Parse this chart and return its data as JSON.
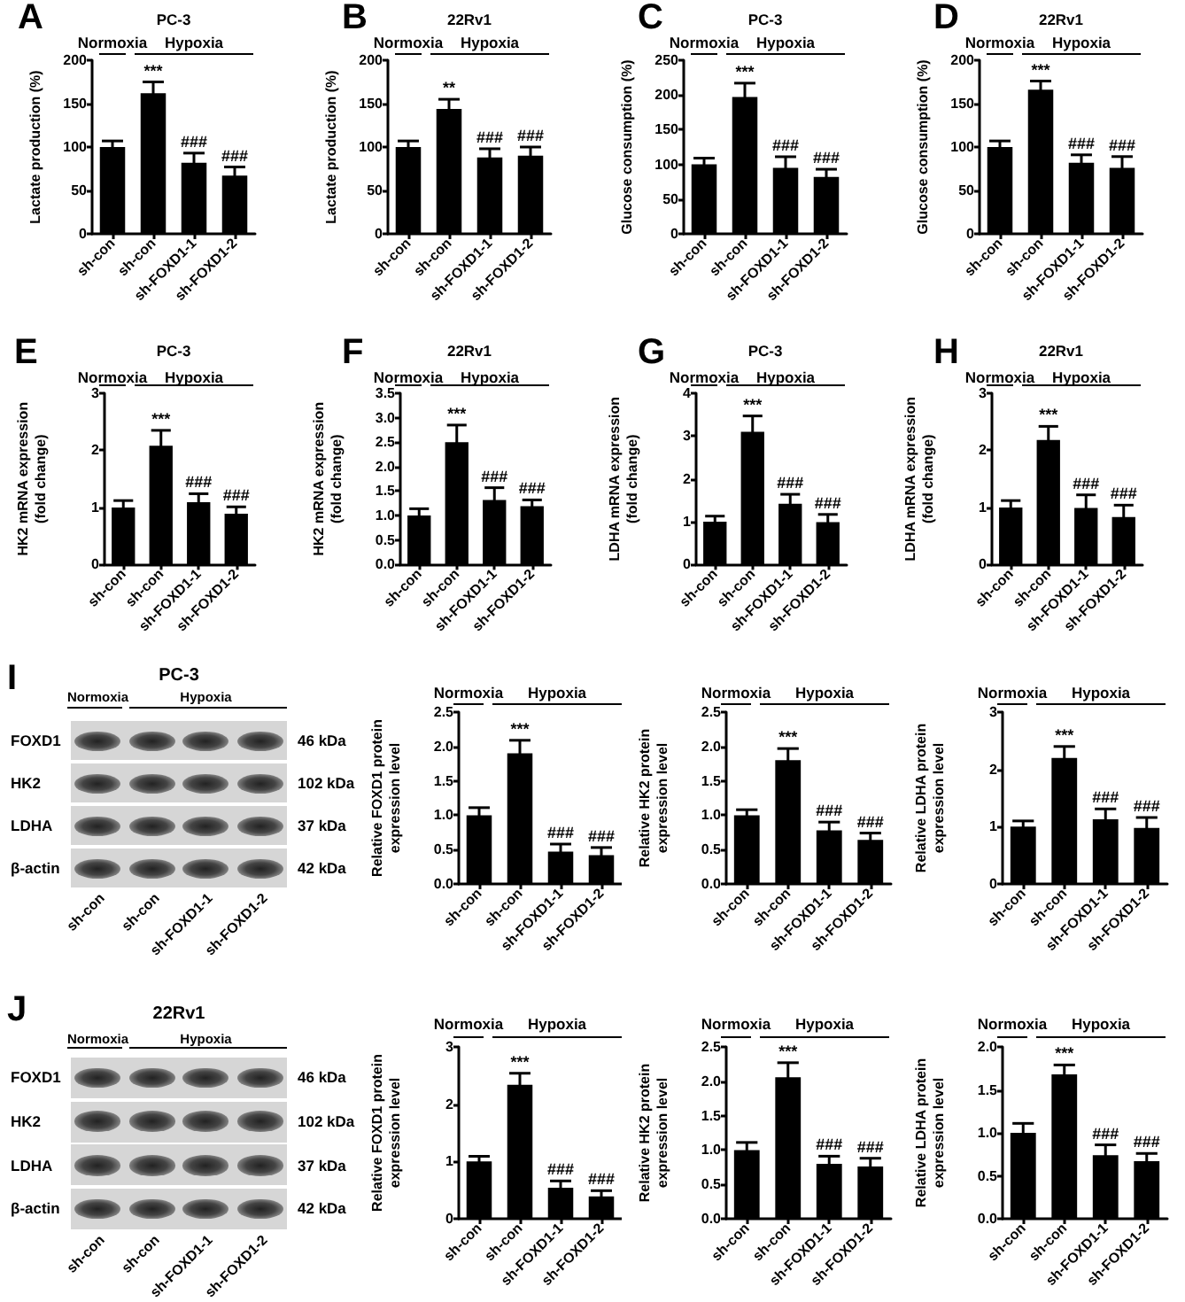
{
  "chart_data": [
    {
      "type": "bar",
      "title": "PC-3",
      "ylabel": "Lactate production (%)",
      "categories": [
        "sh-con",
        "sh-con",
        "sh-FOXD1-1",
        "sh-FOXD1-2"
      ],
      "values": [
        100,
        162,
        82,
        67
      ],
      "errors": [
        7,
        13,
        11,
        10
      ],
      "color": "#000000",
      "ylim": [
        0,
        200
      ],
      "yticks": [
        0,
        50,
        100,
        150,
        200
      ],
      "value_labels": [
        null,
        "***",
        "###",
        "###"
      ],
      "annotations": [
        "A",
        "Normoxia",
        "Hypoxia"
      ]
    },
    {
      "type": "bar",
      "title": "22Rv1",
      "ylabel": "Lactate production (%)",
      "categories": [
        "sh-con",
        "sh-con",
        "sh-FOXD1-1",
        "sh-FOXD1-2"
      ],
      "values": [
        100,
        144,
        88,
        90
      ],
      "errors": [
        7,
        11,
        10,
        10
      ],
      "color": "#000000",
      "ylim": [
        0,
        200
      ],
      "yticks": [
        0,
        50,
        100,
        150,
        200
      ],
      "value_labels": [
        null,
        "**",
        "###",
        "###"
      ],
      "annotations": [
        "B",
        "Normoxia",
        "Hypoxia"
      ]
    },
    {
      "type": "bar",
      "title": "PC-3",
      "ylabel": "Glucose consumption (%)",
      "categories": [
        "sh-con",
        "sh-con",
        "sh-FOXD1-1",
        "sh-FOXD1-2"
      ],
      "values": [
        100,
        197,
        95,
        82
      ],
      "errors": [
        9,
        20,
        16,
        11
      ],
      "color": "#000000",
      "ylim": [
        0,
        250
      ],
      "yticks": [
        0,
        50,
        100,
        150,
        200,
        250
      ],
      "value_labels": [
        null,
        "***",
        "###",
        "###"
      ],
      "annotations": [
        "C",
        "Normoxia",
        "Hypoxia"
      ]
    },
    {
      "type": "bar",
      "title": "22Rv1",
      "ylabel": "Glucose consumption (%)",
      "categories": [
        "sh-con",
        "sh-con",
        "sh-FOXD1-1",
        "sh-FOXD1-2"
      ],
      "values": [
        100,
        166,
        82,
        76
      ],
      "errors": [
        7,
        10,
        9,
        13
      ],
      "color": "#000000",
      "ylim": [
        0,
        200
      ],
      "yticks": [
        0,
        50,
        100,
        150,
        200
      ],
      "value_labels": [
        null,
        "***",
        "###",
        "###"
      ],
      "annotations": [
        "D",
        "Normoxia",
        "Hypoxia"
      ]
    },
    {
      "type": "bar",
      "title": "PC-3",
      "ylabel": "HK2 mRNA expression\n(fold change)",
      "categories": [
        "sh-con",
        "sh-con",
        "sh-FOXD1-1",
        "sh-FOXD1-2"
      ],
      "values": [
        1.0,
        2.08,
        1.09,
        0.89
      ],
      "errors": [
        0.12,
        0.27,
        0.15,
        0.12
      ],
      "color": "#000000",
      "ylim": [
        0,
        3
      ],
      "yticks": [
        0,
        1,
        2,
        3
      ],
      "value_labels": [
        null,
        "***",
        "###",
        "###"
      ],
      "annotations": [
        "E",
        "Normoxia",
        "Hypoxia"
      ]
    },
    {
      "type": "bar",
      "title": "22Rv1",
      "ylabel": "HK2 mRNA expression\n(fold change)",
      "categories": [
        "sh-con",
        "sh-con",
        "sh-FOXD1-1",
        "sh-FOXD1-2"
      ],
      "values": [
        1.0,
        2.5,
        1.32,
        1.19
      ],
      "errors": [
        0.14,
        0.35,
        0.25,
        0.13
      ],
      "color": "#000000",
      "ylim": [
        0,
        3.5
      ],
      "yticks": [
        {
          "value": 0,
          "label": "0.0"
        },
        0.5,
        {
          "value": 1,
          "label": "1.0"
        },
        1.5,
        {
          "value": 2,
          "label": "2.0"
        },
        2.5,
        {
          "value": 3,
          "label": "3.0"
        },
        3.5
      ],
      "value_labels": [
        null,
        "***",
        "###",
        "###"
      ],
      "annotations": [
        "F",
        "Normoxia",
        "Hypoxia"
      ]
    },
    {
      "type": "bar",
      "title": "PC-3",
      "ylabel": "LDHA mRNA expression\n(fold change)",
      "categories": [
        "sh-con",
        "sh-con",
        "sh-FOXD1-1",
        "sh-FOXD1-2"
      ],
      "values": [
        1.0,
        3.1,
        1.42,
        0.99
      ],
      "errors": [
        0.13,
        0.37,
        0.22,
        0.18
      ],
      "color": "#000000",
      "ylim": [
        0,
        4
      ],
      "yticks": [
        0,
        1,
        2,
        3,
        4
      ],
      "value_labels": [
        null,
        "***",
        "###",
        "###"
      ],
      "annotations": [
        "G",
        "Normoxia",
        "Hypoxia"
      ]
    },
    {
      "type": "bar",
      "title": "22Rv1",
      "ylabel": "LDHA mRNA expression\n(fold change)",
      "categories": [
        "sh-con",
        "sh-con",
        "sh-FOXD1-1",
        "sh-FOXD1-2"
      ],
      "values": [
        1.0,
        2.18,
        0.99,
        0.83
      ],
      "errors": [
        0.12,
        0.24,
        0.23,
        0.21
      ],
      "color": "#000000",
      "ylim": [
        0,
        3
      ],
      "yticks": [
        0,
        1,
        2,
        3
      ],
      "value_labels": [
        null,
        "***",
        "###",
        "###"
      ],
      "annotations": [
        "H",
        "Normoxia",
        "Hypoxia"
      ]
    },
    {
      "type": "other",
      "title": "PC-3",
      "categories": [
        "sh-con",
        "sh-con",
        "sh-FOXD1-1",
        "sh-FOXD1-2"
      ],
      "y_categories": [
        "FOXD1",
        "HK2",
        "LDHA",
        "β-actin"
      ],
      "y2_categories": [
        "46 kDa",
        "102 kDa",
        "37 kDa",
        "42 kDa"
      ],
      "annotations": [
        "I",
        "Normoxia",
        "Hypoxia"
      ]
    },
    {
      "type": "bar",
      "ylabel": "Relative FOXD1 protein\nexpression level",
      "categories": [
        "sh-con",
        "sh-con",
        "sh-FOXD1-1",
        "sh-FOXD1-2"
      ],
      "values": [
        1.0,
        1.9,
        0.47,
        0.42
      ],
      "errors": [
        0.11,
        0.19,
        0.11,
        0.11
      ],
      "color": "#000000",
      "ylim": [
        0,
        2.5
      ],
      "yticks": [
        {
          "value": 0,
          "label": "0.0"
        },
        0.5,
        {
          "value": 1,
          "label": "1.0"
        },
        1.5,
        {
          "value": 2,
          "label": "2.0"
        },
        2.5
      ],
      "value_labels": [
        null,
        "***",
        "###",
        "###"
      ],
      "annotations": [
        "Normoxia",
        "Hypoxia"
      ]
    },
    {
      "type": "bar",
      "ylabel": "Relative HK2 protein\nexpression level",
      "categories": [
        "sh-con",
        "sh-con",
        "sh-FOXD1-1",
        "sh-FOXD1-2"
      ],
      "values": [
        1.0,
        1.8,
        0.78,
        0.64
      ],
      "errors": [
        0.08,
        0.17,
        0.12,
        0.1
      ],
      "color": "#000000",
      "ylim": [
        0,
        2.5
      ],
      "yticks": [
        {
          "value": 0,
          "label": "0.0"
        },
        0.5,
        {
          "value": 1,
          "label": "1.0"
        },
        1.5,
        {
          "value": 2,
          "label": "2.0"
        },
        2.5
      ],
      "value_labels": [
        null,
        "***",
        "###",
        "###"
      ],
      "annotations": [
        "Normoxia",
        "Hypoxia"
      ]
    },
    {
      "type": "bar",
      "ylabel": "Relative LDHA protein\nexpression level",
      "categories": [
        "sh-con",
        "sh-con",
        "sh-FOXD1-1",
        "sh-FOXD1-2"
      ],
      "values": [
        1.0,
        2.2,
        1.13,
        0.98
      ],
      "errors": [
        0.1,
        0.2,
        0.18,
        0.18
      ],
      "color": "#000000",
      "ylim": [
        0,
        3
      ],
      "yticks": [
        0,
        1,
        2,
        3
      ],
      "value_labels": [
        null,
        "***",
        "###",
        "###"
      ],
      "annotations": [
        "Normoxia",
        "Hypoxia"
      ]
    },
    {
      "type": "other",
      "title": "22Rv1",
      "categories": [
        "sh-con",
        "sh-con",
        "sh-FOXD1-1",
        "sh-FOXD1-2"
      ],
      "y_categories": [
        "FOXD1",
        "HK2",
        "LDHA",
        "β-actin"
      ],
      "y2_categories": [
        "46 kDa",
        "102 kDa",
        "37 kDa",
        "42 kDa"
      ],
      "annotations": [
        "J",
        "Normoxia",
        "Hypoxia"
      ]
    },
    {
      "type": "bar",
      "ylabel": "Relative FOXD1 protein\nexpression level",
      "categories": [
        "sh-con",
        "sh-con",
        "sh-FOXD1-1",
        "sh-FOXD1-2"
      ],
      "values": [
        1.0,
        2.34,
        0.54,
        0.39
      ],
      "errors": [
        0.09,
        0.2,
        0.12,
        0.1
      ],
      "color": "#000000",
      "ylim": [
        0,
        3
      ],
      "yticks": [
        0,
        1,
        2,
        3
      ],
      "value_labels": [
        null,
        "***",
        "###",
        "###"
      ],
      "annotations": [
        "Normoxia",
        "Hypoxia"
      ]
    },
    {
      "type": "bar",
      "ylabel": "Relative HK2 protein\nexpression level",
      "categories": [
        "sh-con",
        "sh-con",
        "sh-FOXD1-1",
        "sh-FOXD1-2"
      ],
      "values": [
        1.0,
        2.06,
        0.8,
        0.76
      ],
      "errors": [
        0.11,
        0.21,
        0.11,
        0.12
      ],
      "color": "#000000",
      "ylim": [
        0,
        2.5
      ],
      "yticks": [
        {
          "value": 0,
          "label": "0.0"
        },
        0.5,
        {
          "value": 1,
          "label": "1.0"
        },
        1.5,
        {
          "value": 2,
          "label": "2.0"
        },
        2.5
      ],
      "value_labels": [
        null,
        "***",
        "###",
        "###"
      ],
      "annotations": [
        "Normoxia",
        "Hypoxia"
      ]
    },
    {
      "type": "bar",
      "ylabel": "Relative LDHA protein\nexpression level",
      "categories": [
        "sh-con",
        "sh-con",
        "sh-FOXD1-1",
        "sh-FOXD1-2"
      ],
      "values": [
        1.0,
        1.68,
        0.74,
        0.67
      ],
      "errors": [
        0.11,
        0.11,
        0.12,
        0.09
      ],
      "color": "#000000",
      "ylim": [
        0,
        2
      ],
      "yticks": [
        {
          "value": 0,
          "label": "0.0"
        },
        0.5,
        {
          "value": 1,
          "label": "1.0"
        },
        1.5,
        {
          "value": 2,
          "label": "2.0"
        }
      ],
      "value_labels": [
        null,
        "***",
        "###",
        "###"
      ],
      "annotations": [
        "Normoxia",
        "Hypoxia"
      ]
    }
  ]
}
